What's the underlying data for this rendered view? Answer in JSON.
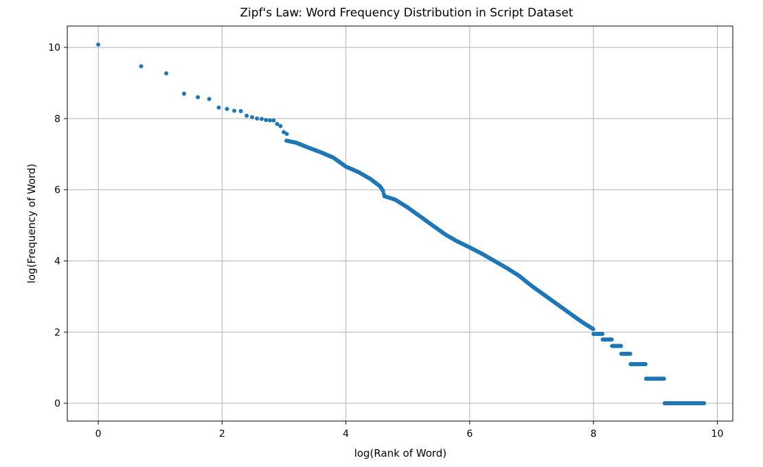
{
  "chart_data": {
    "type": "scatter",
    "title": "Zipf's Law: Word Frequency Distribution in Script Dataset",
    "xlabel": "log(Rank of Word)",
    "ylabel": "log(Frequency of Word)",
    "xlim": [
      -0.5,
      10.25
    ],
    "ylim": [
      -0.5,
      10.6
    ],
    "xticks": [
      0,
      2,
      4,
      6,
      8,
      10
    ],
    "yticks": [
      0,
      2,
      4,
      6,
      8,
      10
    ],
    "grid": true,
    "marker_color": "#1f77b4",
    "points_x": [
      0,
      0.693,
      1.099,
      1.386,
      1.609,
      1.792,
      1.946,
      2.079,
      2.197,
      2.303,
      2.398,
      2.485,
      2.565,
      2.639,
      2.708,
      2.773,
      2.833,
      2.89,
      2.944,
      2.996,
      3.045
    ],
    "points_y": [
      10.08,
      9.47,
      9.27,
      8.7,
      8.6,
      8.55,
      8.31,
      8.27,
      8.22,
      8.21,
      8.08,
      8.04,
      8.0,
      7.99,
      7.96,
      7.95,
      7.95,
      7.85,
      7.79,
      7.62,
      7.57
    ],
    "curve_x": [
      3.04,
      3.2,
      3.4,
      3.6,
      3.8,
      4.0,
      4.2,
      4.4,
      4.55,
      4.6,
      4.62,
      4.8,
      5.0,
      5.2,
      5.4,
      5.6,
      5.8,
      6.0,
      6.2,
      6.4,
      6.6,
      6.8,
      7.0,
      7.2,
      7.4,
      7.6,
      7.8,
      8.0
    ],
    "curve_y": [
      7.38,
      7.32,
      7.18,
      7.05,
      6.9,
      6.65,
      6.5,
      6.3,
      6.1,
      5.97,
      5.82,
      5.72,
      5.5,
      5.25,
      5.0,
      4.75,
      4.55,
      4.38,
      4.2,
      4.0,
      3.8,
      3.58,
      3.3,
      3.05,
      2.8,
      2.55,
      2.3,
      2.08
    ],
    "steps": [
      {
        "y": 1.95,
        "x_start": 8.0,
        "x_end": 8.15
      },
      {
        "y": 1.79,
        "x_start": 8.15,
        "x_end": 8.3
      },
      {
        "y": 1.61,
        "x_start": 8.3,
        "x_end": 8.45
      },
      {
        "y": 1.39,
        "x_start": 8.45,
        "x_end": 8.6
      },
      {
        "y": 1.1,
        "x_start": 8.6,
        "x_end": 8.85
      },
      {
        "y": 0.69,
        "x_start": 8.85,
        "x_end": 9.15
      },
      {
        "y": 0.0,
        "x_start": 9.15,
        "x_end": 9.79
      }
    ]
  }
}
